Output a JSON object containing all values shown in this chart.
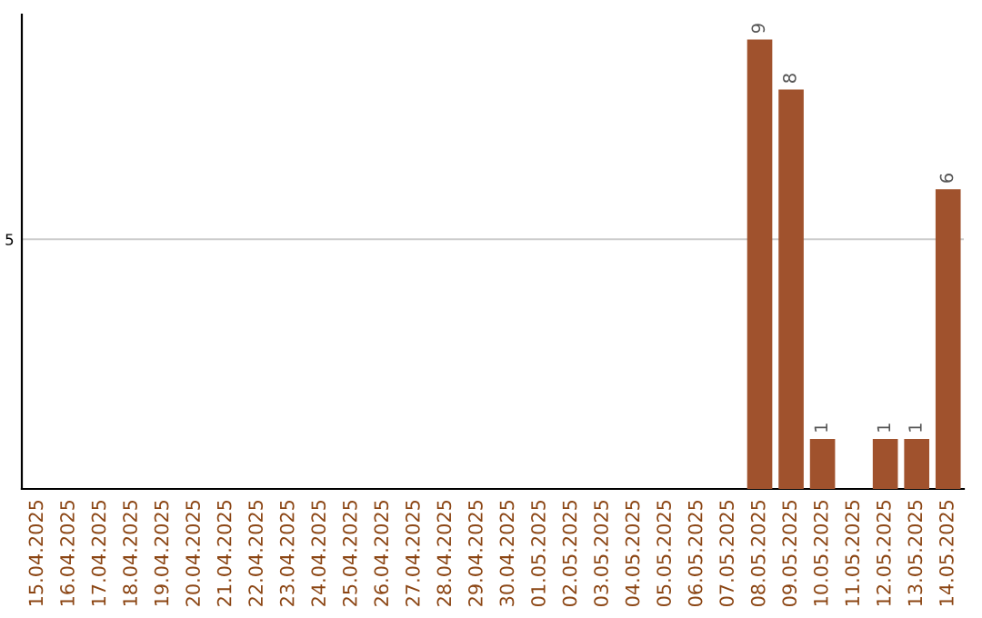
{
  "chart_data": {
    "type": "bar",
    "categories": [
      "15.04.2025",
      "16.04.2025",
      "17.04.2025",
      "18.04.2025",
      "19.04.2025",
      "20.04.2025",
      "21.04.2025",
      "22.04.2025",
      "23.04.2025",
      "24.04.2025",
      "25.04.2025",
      "26.04.2025",
      "27.04.2025",
      "28.04.2025",
      "29.04.2025",
      "30.04.2025",
      "01.05.2025",
      "02.05.2025",
      "03.05.2025",
      "04.05.2025",
      "05.05.2025",
      "06.05.2025",
      "07.05.2025",
      "08.05.2025",
      "09.05.2025",
      "10.05.2025",
      "11.05.2025",
      "12.05.2025",
      "13.05.2025",
      "14.05.2025"
    ],
    "values": [
      null,
      null,
      null,
      null,
      null,
      null,
      null,
      null,
      null,
      null,
      null,
      null,
      null,
      null,
      null,
      null,
      null,
      null,
      null,
      null,
      null,
      null,
      null,
      9,
      8,
      1,
      null,
      1,
      1,
      6
    ],
    "color": "#a0522d",
    "ylim": [
      0,
      9.5
    ],
    "yticks": [
      5
    ],
    "grid": "y",
    "data_labels": true
  }
}
